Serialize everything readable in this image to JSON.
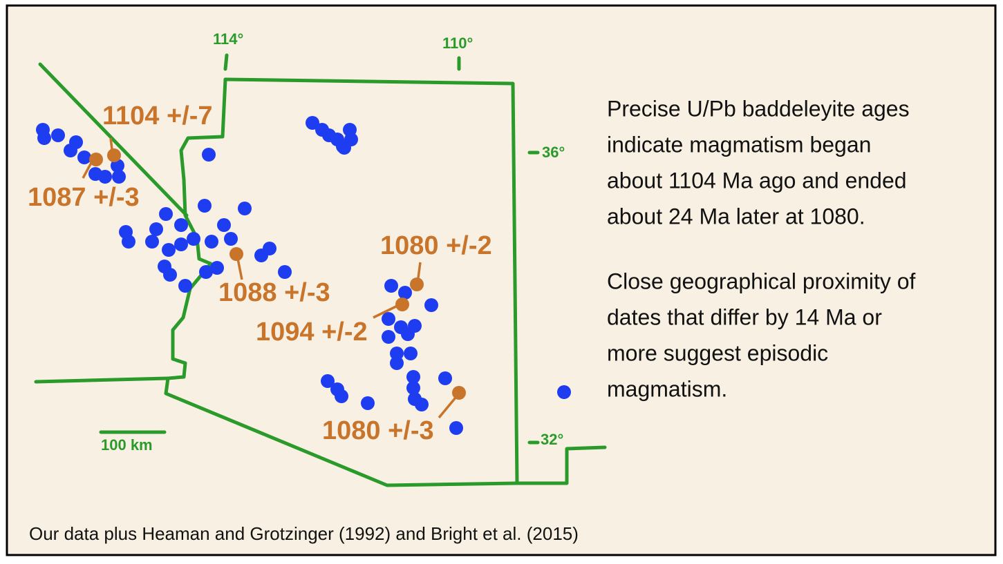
{
  "map": {
    "graticule_labels": [
      "114°",
      "110°",
      "36°",
      "32°"
    ],
    "scale_bar": "100 km",
    "age_labels": [
      "1104 +/-7",
      "1087 +/-3",
      "1088 +/-3",
      "1080 +/-2",
      "1094 +/-2",
      "1080 +/-3"
    ]
  },
  "text_panel": {
    "paragraphs": [
      [
        "Precise U/Pb baddeleyite ages",
        "indicate magmatism began",
        "about 1104 Ma ago and ended",
        "about 24 Ma later at 1080."
      ],
      [
        "Close geographical proximity of",
        "dates that differ by 14 Ma or",
        "more suggest episodic",
        "magmatism."
      ]
    ]
  },
  "caption": "Our data plus Heaman and Grotzinger (1992) and Bright et al.  (2015)"
}
